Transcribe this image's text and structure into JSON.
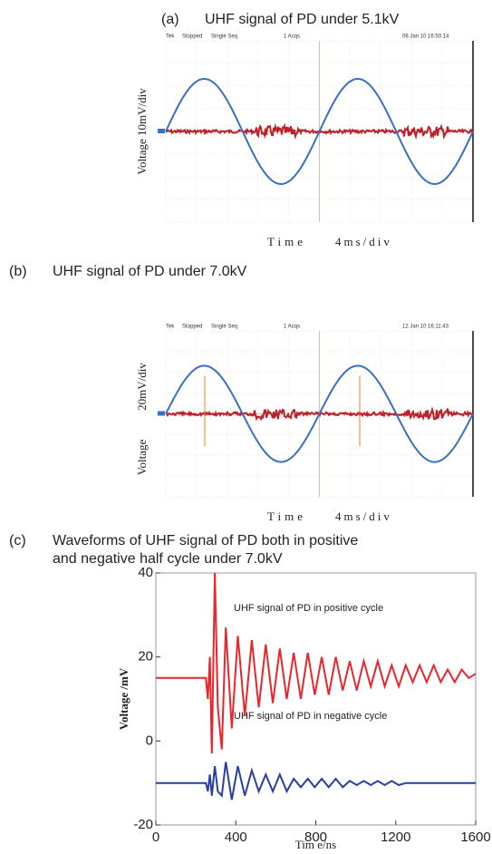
{
  "captions": [
    {
      "label": "(a)",
      "text": "UHF signal of PD under 5.1kV"
    },
    {
      "label": "(b)",
      "text": "UHF signal of PD under 7.0kV"
    },
    {
      "label": "(c)",
      "text": "Waveforms of UHF signal of PD both in positive",
      "text2": "and negative half cycle under 7.0kV"
    }
  ],
  "scopes": [
    {
      "header": [
        "Tek",
        "Stopped",
        "Single Seq",
        "1 Acqs",
        "08 Jan 10 16:50:14"
      ],
      "ylabel": [
        "Voltage 10mV/div"
      ],
      "xlabel": [
        "Time",
        "4ms/div"
      ]
    },
    {
      "header": [
        "Tek",
        "Stopped",
        "Single Seq",
        "1 Acqs",
        "12 Jan 10 16:11:43"
      ],
      "ylabel": [
        "20mV/div",
        "Voltage"
      ],
      "xlabel": [
        "Time",
        "4ms/div"
      ]
    }
  ],
  "chart_data": {
    "type": "line",
    "xlabel": "Tim e/ns",
    "ylabel": "Voltage /mV",
    "x": [
      0,
      100,
      200,
      250,
      260,
      270,
      280,
      295,
      310,
      330,
      350,
      380,
      410,
      445,
      480,
      515,
      550,
      585,
      620,
      655,
      690,
      725,
      760,
      795,
      830,
      865,
      900,
      935,
      970,
      1005,
      1040,
      1075,
      1110,
      1145,
      1180,
      1215,
      1250,
      1285,
      1320,
      1355,
      1390,
      1425,
      1460,
      1495,
      1530,
      1565,
      1600
    ],
    "series": [
      {
        "name": "UHF signal of PD in positive cycle",
        "color": "#e8262b",
        "values": [
          15,
          15,
          15,
          15,
          10,
          20,
          -3,
          40,
          8,
          -2,
          27,
          3,
          25,
          6,
          24,
          8,
          23,
          9,
          22,
          10,
          21,
          10,
          21,
          11,
          20,
          11,
          20,
          12,
          19,
          12,
          19,
          13,
          19,
          13,
          18,
          13,
          18,
          14,
          18,
          14,
          18,
          14,
          17,
          14,
          17,
          15,
          16
        ]
      },
      {
        "name": "UHF signal of PD in negative cycle",
        "color": "#2a3f9e",
        "values": [
          -10,
          -10,
          -10,
          -10,
          -12,
          -8,
          -13,
          -6,
          -12,
          -13,
          -5,
          -14,
          -6,
          -13,
          -7,
          -12,
          -8,
          -12,
          -8,
          -12,
          -9,
          -11,
          -9,
          -11,
          -9,
          -11,
          -9,
          -11,
          -9.5,
          -10.5,
          -9.5,
          -10.5,
          -9.5,
          -10.5,
          -9.5,
          -10.5,
          -10,
          -10,
          -10,
          -10,
          -10,
          -10,
          -10,
          -10,
          -10,
          -10,
          -10
        ]
      }
    ],
    "xlim": [
      0,
      1600
    ],
    "ylim": [
      -20,
      40
    ],
    "xticks": [
      0,
      400,
      800,
      1200,
      1600
    ],
    "yticks": [
      -20,
      0,
      20,
      40
    ]
  }
}
